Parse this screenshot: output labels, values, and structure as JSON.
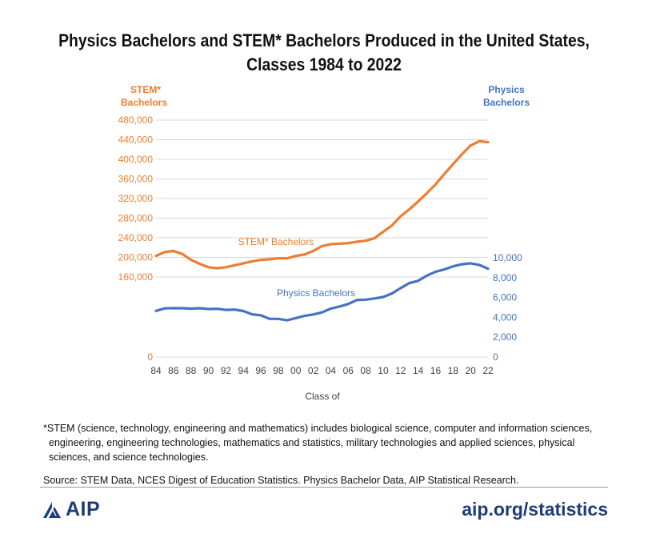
{
  "title_line1": "Physics Bachelors and STEM* Bachelors Produced in the United States,",
  "title_line2": "Classes 1984 to 2022",
  "footnote_line1": "*STEM (science, technology, engineering and mathematics) includes biological science, computer and information sciences,",
  "footnote_line2": "engineering, engineering technologies, mathematics and statistics, military technologies and applied sciences, physical",
  "footnote_line3": "sciences, and science technologies.",
  "source": "Source: STEM Data, NCES Digest of Education Statistics. Physics Bachelor Data, AIP Statistical Research.",
  "logo_text": "AIP",
  "site": "aip.org/statistics",
  "colors": {
    "stem": "#ed7d31",
    "physics": "#4472c4",
    "brand": "#1c3d7a"
  },
  "chart_data": {
    "type": "line",
    "xlabel": "Class of",
    "x": [
      84,
      85,
      86,
      87,
      88,
      89,
      90,
      91,
      92,
      93,
      94,
      95,
      96,
      97,
      98,
      99,
      0,
      1,
      2,
      3,
      4,
      5,
      6,
      7,
      8,
      9,
      10,
      11,
      12,
      13,
      14,
      15,
      16,
      17,
      18,
      19,
      20,
      21,
      22
    ],
    "x_tick_labels": [
      "84",
      "86",
      "88",
      "90",
      "92",
      "94",
      "96",
      "98",
      "00",
      "02",
      "04",
      "06",
      "08",
      "10",
      "12",
      "14",
      "16",
      "18",
      "20",
      "22"
    ],
    "left_axis": {
      "label_line1": "STEM*",
      "label_line2": "Bachelors",
      "ylim": [
        0,
        480000
      ],
      "ticks": [
        "0",
        "160,000",
        "200,000",
        "240,000",
        "280,000",
        "320,000",
        "360,000",
        "400,000",
        "440,000",
        "480,000"
      ],
      "tick_values": [
        0,
        160000,
        200000,
        240000,
        280000,
        320000,
        360000,
        400000,
        440000,
        480000
      ]
    },
    "right_axis": {
      "label_line1": "Physics",
      "label_line2": "Bachelors",
      "ylim": [
        0,
        10000
      ],
      "ticks": [
        "0",
        "2,000",
        "4,000",
        "6,000",
        "8,000",
        "10,000"
      ],
      "tick_values": [
        0,
        2000,
        4000,
        6000,
        8000,
        10000
      ]
    },
    "grid": true,
    "series": [
      {
        "name": "STEM* Bachelors",
        "axis": "left",
        "values": [
          203000,
          211000,
          213000,
          207000,
          195000,
          187000,
          180000,
          178000,
          180000,
          184000,
          188000,
          192000,
          195000,
          196000,
          198000,
          198000,
          203000,
          206000,
          213000,
          223000,
          227000,
          228000,
          229000,
          232000,
          234000,
          239000,
          252000,
          265000,
          284000,
          298000,
          314000,
          331000,
          349000,
          370000,
          390000,
          410000,
          428000,
          437000,
          435000
        ]
      },
      {
        "name": "Physics Bachelors",
        "axis": "right",
        "values": [
          4650,
          4900,
          4930,
          4920,
          4880,
          4920,
          4840,
          4860,
          4750,
          4780,
          4640,
          4310,
          4200,
          3850,
          3850,
          3700,
          3930,
          4150,
          4290,
          4500,
          4880,
          5090,
          5350,
          5750,
          5780,
          5900,
          6050,
          6400,
          6950,
          7450,
          7680,
          8200,
          8600,
          8830,
          9140,
          9350,
          9440,
          9280,
          8900
        ]
      }
    ],
    "series_labels": [
      "STEM* Bachelors",
      "Physics Bachelors"
    ]
  }
}
